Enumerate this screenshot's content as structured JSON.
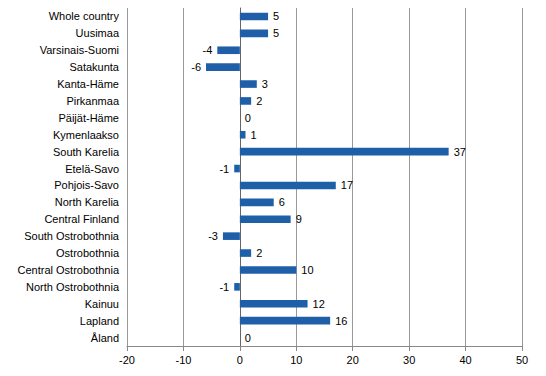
{
  "chart_data": {
    "type": "bar",
    "orientation": "horizontal",
    "categories": [
      "Whole country",
      "Uusimaa",
      "Varsinais-Suomi",
      "Satakunta",
      "Kanta-Häme",
      "Pirkanmaa",
      "Päijät-Häme",
      "Kymenlaakso",
      "South Karelia",
      "Etelä-Savo",
      "Pohjois-Savo",
      "North Karelia",
      "Central Finland",
      "South Ostrobothnia",
      "Ostrobothnia",
      "Central Ostrobothnia",
      "North Ostrobothnia",
      "Kainuu",
      "Lapland",
      "Åland"
    ],
    "values": [
      5,
      5,
      -4,
      -6,
      3,
      2,
      0,
      1,
      37,
      -1,
      17,
      6,
      9,
      -3,
      2,
      10,
      -1,
      12,
      16,
      0
    ],
    "color": "#1f5fa8",
    "xlim": [
      -20,
      50
    ],
    "xticks": [
      -20,
      -10,
      0,
      10,
      20,
      30,
      40,
      50
    ],
    "grid": true,
    "data_labels": true
  }
}
